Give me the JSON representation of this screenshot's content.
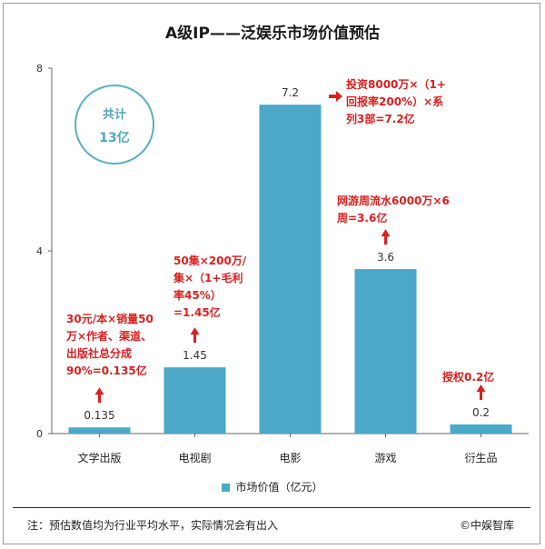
{
  "chart_data": {
    "type": "bar",
    "title": "A级IP——泛娱乐市场价值预估",
    "categories": [
      "文学出版",
      "电视剧",
      "电影",
      "游戏",
      "衍生品"
    ],
    "series": [
      {
        "name": "市场价值（亿元）",
        "values": [
          0.135,
          1.45,
          7.2,
          3.6,
          0.2
        ]
      }
    ],
    "value_labels": [
      "0.135",
      "1.45",
      "7.2",
      "3.6",
      "0.2"
    ],
    "ylim": [
      0,
      8
    ],
    "yticks": [
      0,
      4,
      8
    ],
    "xlabel": "",
    "ylabel": "",
    "legend": "bottom-center",
    "color": "#4ba8c6"
  },
  "total": {
    "line1": "共计",
    "line2": "13亿"
  },
  "annotations": {
    "wenxue": "30元/本×销量50\n万×作者、渠道、\n出版社总分成\n90%=0.135亿",
    "dianshiju": "50集×200万/\n集×（1+毛利\n率45%）\n=1.45亿",
    "dianying": "投资8000万×（1+\n回报率200%）×系\n列3部=7.2亿",
    "youxi": "网游周流水6000万×6\n周=3.6亿",
    "yanshengpin": "授权0.2亿"
  },
  "footer": {
    "note": "注：预估数值均为行业平均水平，实际情况会有出入",
    "source": "©中娱智库"
  },
  "colors": {
    "bar": "#4ba8c6",
    "annotation": "#d92020",
    "circle": "#5aaec0"
  }
}
